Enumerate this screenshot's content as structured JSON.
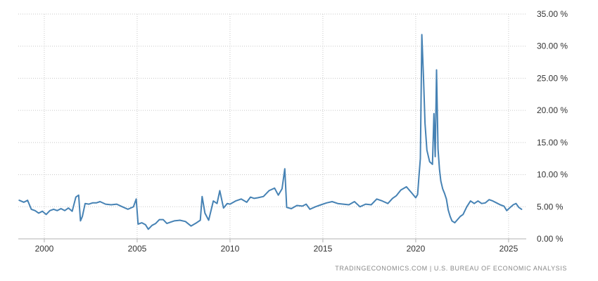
{
  "chart_data": {
    "type": "line",
    "title": "",
    "xlabel": "",
    "ylabel": "",
    "xlim": [
      1998.6,
      2025.95
    ],
    "ylim": [
      0,
      35
    ],
    "grid": true,
    "y_ticks": [
      {
        "value": 0,
        "label": "0.00 %"
      },
      {
        "value": 5,
        "label": "5.00 %"
      },
      {
        "value": 10,
        "label": "10.00 %"
      },
      {
        "value": 15,
        "label": "15.00 %"
      },
      {
        "value": 20,
        "label": "20.00 %"
      },
      {
        "value": 25,
        "label": "25.00 %"
      },
      {
        "value": 30,
        "label": "30.00 %"
      },
      {
        "value": 35,
        "label": "35.00 %"
      }
    ],
    "x_ticks": [
      {
        "value": 2000,
        "label": "2000"
      },
      {
        "value": 2005,
        "label": "2005"
      },
      {
        "value": 2010,
        "label": "2010"
      },
      {
        "value": 2015,
        "label": "2015"
      },
      {
        "value": 2020,
        "label": "2020"
      },
      {
        "value": 2025,
        "label": "2025"
      }
    ],
    "series": [
      {
        "color": "#4682b4",
        "x": [
          1998.65,
          1998.9,
          1999.1,
          1999.3,
          1999.5,
          1999.7,
          1999.9,
          2000.1,
          2000.3,
          2000.5,
          2000.7,
          2000.9,
          2001.1,
          2001.3,
          2001.5,
          2001.7,
          2001.85,
          2001.95,
          2002.05,
          2002.2,
          2002.4,
          2002.6,
          2002.8,
          2003.0,
          2003.3,
          2003.6,
          2003.9,
          2004.2,
          2004.5,
          2004.8,
          2004.95,
          2005.05,
          2005.25,
          2005.45,
          2005.6,
          2005.8,
          2006.0,
          2006.2,
          2006.4,
          2006.6,
          2006.8,
          2007.0,
          2007.3,
          2007.6,
          2007.9,
          2008.2,
          2008.4,
          2008.5,
          2008.65,
          2008.85,
          2009.1,
          2009.3,
          2009.45,
          2009.65,
          2009.85,
          2010.0,
          2010.3,
          2010.6,
          2010.9,
          2011.1,
          2011.3,
          2011.5,
          2011.8,
          2012.1,
          2012.4,
          2012.6,
          2012.8,
          2012.95,
          2013.05,
          2013.3,
          2013.6,
          2013.9,
          2014.1,
          2014.3,
          2014.6,
          2014.9,
          2015.2,
          2015.5,
          2015.8,
          2016.1,
          2016.4,
          2016.7,
          2017.0,
          2017.3,
          2017.6,
          2017.9,
          2018.2,
          2018.5,
          2018.75,
          2018.95,
          2019.2,
          2019.5,
          2019.8,
          2020.0,
          2020.1,
          2020.18,
          2020.25,
          2020.33,
          2020.42,
          2020.5,
          2020.6,
          2020.75,
          2020.9,
          2020.98,
          2021.05,
          2021.12,
          2021.2,
          2021.28,
          2021.35,
          2021.45,
          2021.55,
          2021.65,
          2021.75,
          2021.85,
          2021.95,
          2022.1,
          2022.25,
          2022.4,
          2022.55,
          2022.75,
          2022.95,
          2023.15,
          2023.35,
          2023.55,
          2023.75,
          2023.95,
          2024.15,
          2024.35,
          2024.55,
          2024.75,
          2024.9,
          2025.05,
          2025.25,
          2025.4,
          2025.55,
          2025.7
        ],
        "y": [
          6.0,
          5.7,
          6.0,
          4.6,
          4.4,
          4.0,
          4.3,
          3.8,
          4.4,
          4.6,
          4.4,
          4.7,
          4.4,
          4.8,
          4.3,
          6.5,
          6.8,
          2.8,
          3.5,
          5.5,
          5.4,
          5.6,
          5.6,
          5.8,
          5.4,
          5.3,
          5.4,
          5.0,
          4.6,
          5.0,
          6.2,
          2.3,
          2.5,
          2.2,
          1.5,
          2.1,
          2.4,
          3.0,
          3.0,
          2.4,
          2.6,
          2.8,
          2.9,
          2.7,
          2.0,
          2.5,
          2.9,
          6.6,
          4.0,
          2.9,
          5.9,
          5.5,
          7.5,
          4.8,
          5.5,
          5.4,
          5.9,
          6.2,
          5.7,
          6.5,
          6.3,
          6.4,
          6.6,
          7.5,
          7.9,
          6.8,
          7.8,
          10.9,
          4.9,
          4.7,
          5.2,
          5.1,
          5.4,
          4.6,
          5.0,
          5.3,
          5.6,
          5.8,
          5.5,
          5.4,
          5.3,
          5.8,
          5.0,
          5.4,
          5.3,
          6.2,
          5.9,
          5.5,
          6.3,
          6.7,
          7.6,
          8.1,
          7.1,
          6.4,
          6.9,
          10.0,
          12.5,
          31.8,
          25.0,
          18.0,
          13.8,
          12.0,
          11.6,
          19.5,
          12.8,
          26.3,
          14.0,
          10.8,
          9.0,
          7.8,
          7.1,
          6.2,
          4.5,
          3.5,
          2.8,
          2.5,
          3.0,
          3.5,
          3.8,
          5.0,
          5.9,
          5.5,
          5.9,
          5.5,
          5.6,
          6.1,
          5.9,
          5.6,
          5.3,
          5.1,
          4.4,
          4.8,
          5.3,
          5.5,
          4.9,
          4.6
        ]
      }
    ]
  },
  "footer": {
    "source_text": "TRADINGECONOMICS.COM  |  U.S. BUREAU OF ECONOMIC ANALYSIS"
  }
}
